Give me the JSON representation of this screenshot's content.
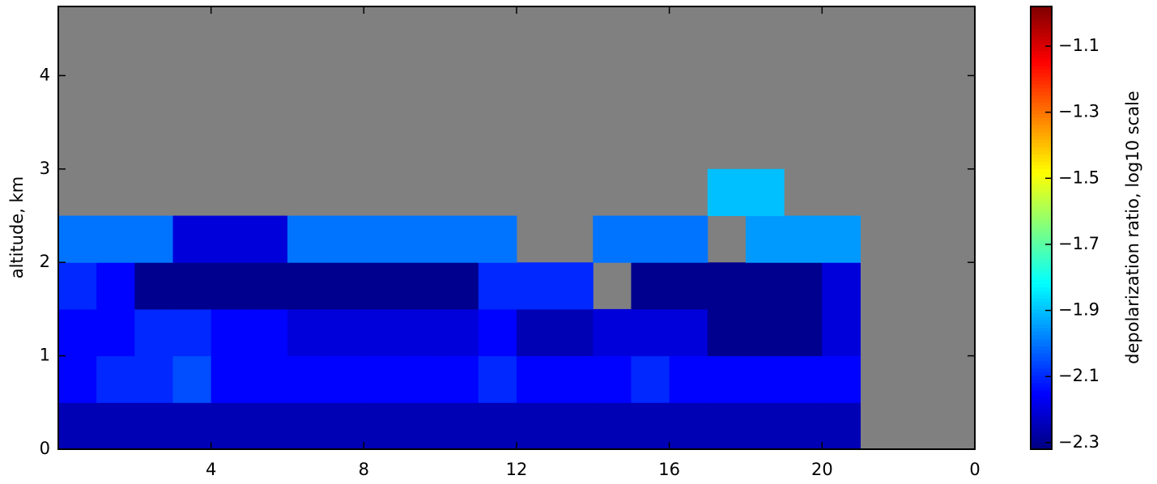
{
  "chart_data": {
    "type": "heatmap",
    "ylabel": "altitude, km",
    "colorbar_label": "depolarization ratio, log10 scale",
    "colormap": "jet",
    "missing_color": "#808080",
    "xbins": [
      0,
      1,
      2,
      3,
      4,
      5,
      6,
      7,
      8,
      9,
      10,
      11,
      12,
      13,
      14,
      15,
      16,
      17,
      18,
      19,
      20,
      21,
      22,
      23,
      24
    ],
    "ybins": [
      0,
      0.5,
      1,
      1.5,
      2,
      2.5,
      3,
      3.5,
      4,
      4.5,
      4.74
    ],
    "z": [
      [
        -2.25,
        -2.25,
        -2.25,
        -2.25,
        -2.25,
        -2.25,
        -2.25,
        -2.25,
        -2.25,
        -2.25,
        -2.25,
        -2.25,
        -2.25,
        -2.25,
        -2.25,
        -2.25,
        -2.25,
        -2.25,
        -2.25,
        -2.25,
        -2.25,
        null,
        null,
        null
      ],
      [
        -2.15,
        -2.1,
        -2.1,
        -2.05,
        -2.15,
        -2.15,
        -2.15,
        -2.15,
        -2.15,
        -2.15,
        -2.15,
        -2.1,
        -2.15,
        -2.15,
        -2.15,
        -2.1,
        -2.15,
        -2.15,
        -2.15,
        -2.15,
        -2.15,
        null,
        null,
        null
      ],
      [
        -2.15,
        -2.15,
        -2.1,
        -2.1,
        -2.15,
        -2.15,
        -2.2,
        -2.2,
        -2.2,
        -2.2,
        -2.2,
        -2.15,
        -2.25,
        -2.25,
        -2.2,
        -2.2,
        -2.2,
        -2.3,
        -2.3,
        -2.3,
        -2.2,
        null,
        null,
        null
      ],
      [
        -2.1,
        -2.15,
        -2.3,
        -2.3,
        -2.3,
        -2.3,
        -2.3,
        -2.3,
        -2.3,
        -2.3,
        -2.3,
        -2.1,
        -2.1,
        -2.1,
        null,
        -2.3,
        -2.3,
        -2.3,
        -2.3,
        -2.3,
        -2.2,
        null,
        null,
        null
      ],
      [
        -2.0,
        -2.0,
        -2.0,
        -2.2,
        -2.2,
        -2.2,
        -2.0,
        -2.0,
        -2.0,
        -2.0,
        -2.0,
        -2.0,
        null,
        null,
        -2.0,
        -2.0,
        -2.0,
        null,
        -1.95,
        -1.95,
        -1.95,
        null,
        null,
        null
      ],
      [
        null,
        null,
        null,
        null,
        null,
        null,
        null,
        null,
        null,
        null,
        null,
        null,
        null,
        null,
        null,
        null,
        null,
        -1.9,
        -1.9,
        null,
        null,
        null,
        null,
        null
      ],
      [
        null,
        null,
        null,
        null,
        null,
        null,
        null,
        null,
        null,
        null,
        null,
        null,
        null,
        null,
        null,
        null,
        null,
        null,
        null,
        null,
        null,
        null,
        null,
        null
      ],
      [
        null,
        null,
        null,
        null,
        null,
        null,
        null,
        null,
        null,
        null,
        null,
        null,
        null,
        null,
        null,
        null,
        null,
        null,
        null,
        null,
        null,
        null,
        null,
        null
      ],
      [
        null,
        null,
        null,
        null,
        null,
        null,
        null,
        null,
        null,
        null,
        null,
        null,
        null,
        null,
        null,
        null,
        null,
        null,
        null,
        null,
        null,
        null,
        null,
        null
      ],
      [
        null,
        null,
        null,
        null,
        null,
        null,
        null,
        null,
        null,
        null,
        null,
        null,
        null,
        null,
        null,
        null,
        null,
        null,
        null,
        null,
        null,
        null,
        null,
        null
      ]
    ],
    "xlim": [
      0,
      24
    ],
    "xticks": [
      4,
      8,
      12,
      16,
      20,
      {
        "value": 24,
        "label": "0"
      }
    ],
    "ylim": [
      0,
      4.74
    ],
    "yticks": [
      0,
      1,
      2,
      3,
      4
    ],
    "clim": [
      -2.32,
      -0.98
    ],
    "cticks": [
      {
        "value": -2.3,
        "label": "−2.3"
      },
      {
        "value": -2.1,
        "label": "−2.1"
      },
      {
        "value": -1.9,
        "label": "−1.9"
      },
      {
        "value": -1.7,
        "label": "−1.7"
      },
      {
        "value": -1.5,
        "label": "−1.5"
      },
      {
        "value": -1.3,
        "label": "−1.3"
      },
      {
        "value": -1.1,
        "label": "−1.1"
      }
    ]
  }
}
